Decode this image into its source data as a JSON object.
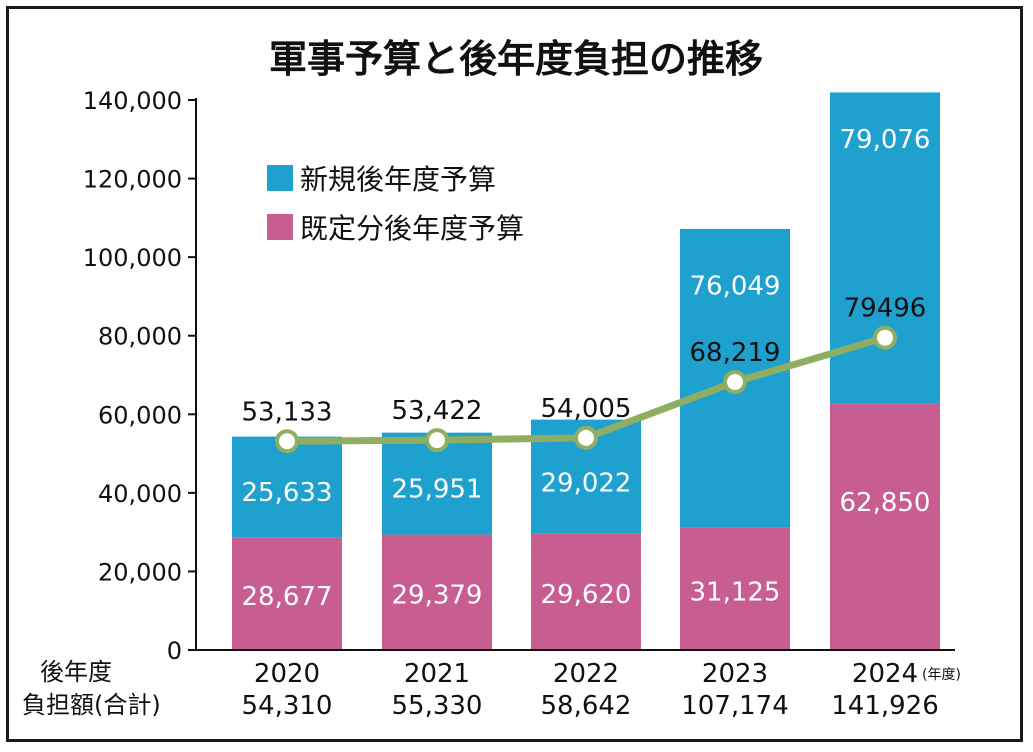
{
  "chart_data": {
    "type": "bar",
    "stacked": true,
    "title": "軍事予算と後年度負担の推移",
    "categories": [
      "2020",
      "2021",
      "2022",
      "2023",
      "2024"
    ],
    "category_unit": "(年度)",
    "ylim": [
      0,
      140000
    ],
    "yticks": [
      "0",
      "20,000",
      "40,000",
      "60,000",
      "80,000",
      "100,000",
      "120,000",
      "140,000"
    ],
    "ytick_values": [
      0,
      20000,
      40000,
      60000,
      80000,
      100000,
      120000,
      140000
    ],
    "legend_position": "top-left",
    "series": [
      {
        "name": "既定分後年度予算",
        "color": "#c85d91",
        "values": [
          28677,
          29379,
          29620,
          31125,
          62850
        ],
        "labels": [
          "28,677",
          "29,379",
          "29,620",
          "31,125",
          "62,850"
        ]
      },
      {
        "name": "新規後年度予算",
        "color": "#1ea1cf",
        "values": [
          25633,
          25951,
          29022,
          76049,
          79076
        ],
        "labels": [
          "25,633",
          "25,951",
          "29,022",
          "76,049",
          "79,076"
        ]
      }
    ],
    "line": {
      "color": "#8fae62",
      "values": [
        53133,
        53422,
        54005,
        68219,
        79496
      ],
      "labels": [
        "53,133",
        "53,422",
        "54,005",
        "68,219",
        "79496"
      ]
    },
    "totals_row": {
      "label_line1": "後年度",
      "label_line2": "負担額(合計)",
      "values": [
        "54,310",
        "55,330",
        "58,642",
        "107,174",
        "141,926"
      ]
    }
  }
}
